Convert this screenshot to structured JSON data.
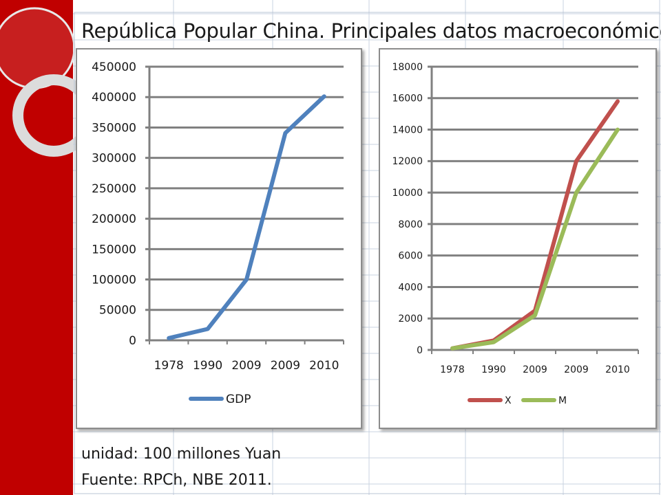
{
  "title": "República Popular China. Principales datos macroeconómicos",
  "footer": {
    "unit": "unidad: 100 millones Yuan",
    "source": "Fuente: RPCh, NBE 2011."
  },
  "colors": {
    "band": "#c00000",
    "gdp": "#4f81bd",
    "x": "#c0504d",
    "m": "#9bbb59",
    "gridline": "#808080"
  },
  "chart_data": [
    {
      "type": "line",
      "categories": [
        "1978",
        "1990",
        "2009",
        "2009",
        "2010"
      ],
      "series": [
        {
          "name": "GDP",
          "values": [
            3645,
            18668,
            100000,
            340903,
            401202
          ]
        }
      ],
      "ylim": [
        0,
        450000
      ],
      "yticks": [
        "0",
        "50000",
        "100000",
        "150000",
        "200000",
        "250000",
        "300000",
        "350000",
        "400000",
        "450000"
      ],
      "grid": true,
      "legend": "bottom"
    },
    {
      "type": "line",
      "categories": [
        "1978",
        "1990",
        "2009",
        "2009",
        "2010"
      ],
      "series": [
        {
          "name": "X",
          "values": [
            100,
            600,
            2500,
            12000,
            15800
          ]
        },
        {
          "name": "M",
          "values": [
            100,
            500,
            2200,
            10000,
            14000
          ]
        }
      ],
      "ylim": [
        0,
        18000
      ],
      "yticks": [
        "0",
        "2000",
        "4000",
        "6000",
        "8000",
        "10000",
        "12000",
        "14000",
        "16000",
        "18000"
      ],
      "grid": true,
      "legend": "bottom"
    }
  ]
}
